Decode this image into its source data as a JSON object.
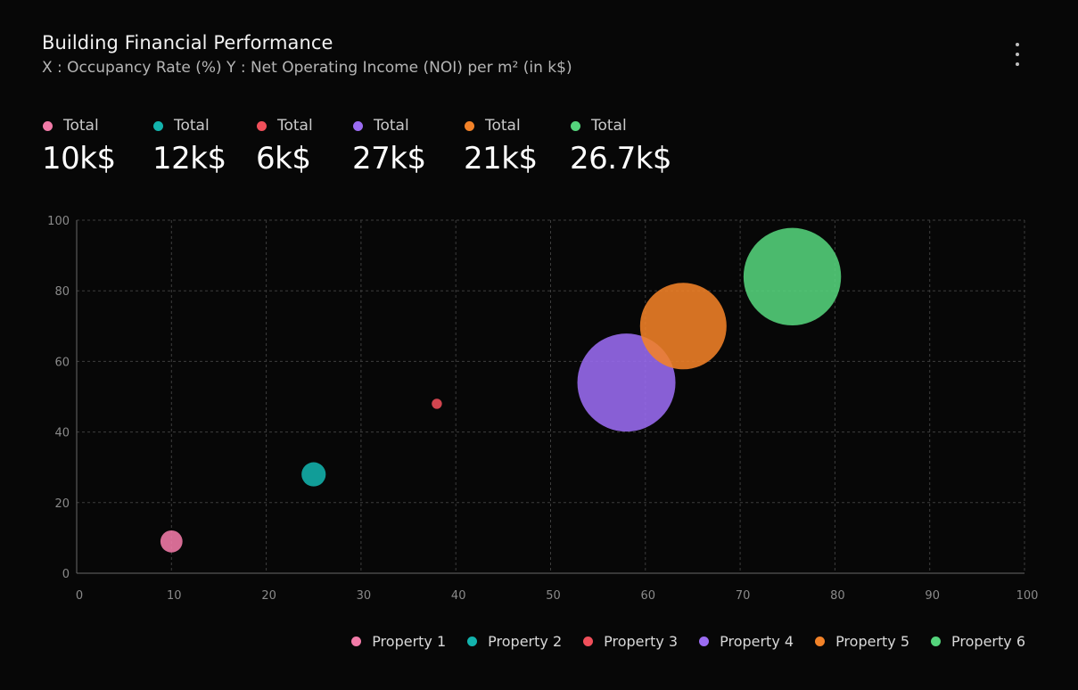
{
  "header": {
    "title": "Building Financial Performance",
    "subtitle": "X : Occupancy Rate (%)  Y : Net Operating Income (NOI) per m² (in k$)",
    "menu_icon": "more-vertical-icon"
  },
  "totals": [
    {
      "label": "Total",
      "value": "10k$",
      "color": "#f27ba8"
    },
    {
      "label": "Total",
      "value": "12k$",
      "color": "#13b3ad"
    },
    {
      "label": "Total",
      "value": "6k$",
      "color": "#ef4f5a"
    },
    {
      "label": "Total",
      "value": "27k$",
      "color": "#9b6cf2"
    },
    {
      "label": "Total",
      "value": "21k$",
      "color": "#f28228"
    },
    {
      "label": "Total",
      "value": "26.7k$",
      "color": "#55d47c"
    }
  ],
  "chart_data": {
    "type": "scatter",
    "title": "Building Financial Performance",
    "xlim": [
      0,
      100
    ],
    "ylim": [
      0,
      100
    ],
    "x_ticks": [
      "0",
      "10",
      "20",
      "30",
      "40",
      "50",
      "60",
      "70",
      "80",
      "90",
      "100"
    ],
    "y_ticks": [
      "0",
      "20",
      "40",
      "60",
      "80",
      "100"
    ],
    "grid": true,
    "legend_placement": "bottom-right",
    "series": [
      {
        "name": "Property 1",
        "color": "#f27ba8",
        "x": 10,
        "y": 9,
        "size": 10
      },
      {
        "name": "Property 2",
        "color": "#13b3ad",
        "x": 25,
        "y": 28,
        "size": 12
      },
      {
        "name": "Property 3",
        "color": "#ef4f5a",
        "x": 38,
        "y": 48,
        "size": 6
      },
      {
        "name": "Property 4",
        "color": "#9b6cf2",
        "x": 58,
        "y": 54,
        "size": 27
      },
      {
        "name": "Property 5",
        "color": "#f28228",
        "x": 64,
        "y": 70,
        "size": 21
      },
      {
        "name": "Property 6",
        "color": "#55d47c",
        "x": 75.5,
        "y": 84,
        "size": 26.7
      }
    ]
  }
}
